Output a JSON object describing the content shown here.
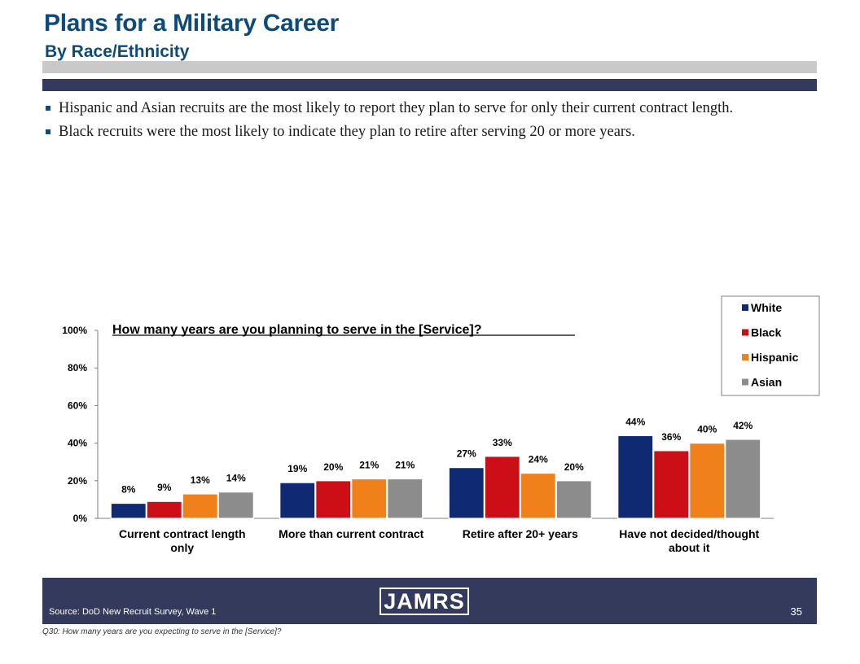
{
  "header": {
    "title": "Plans for a Military Career",
    "subtitle": "By Race/Ethnicity"
  },
  "bullets": [
    "Hispanic and Asian recruits are the most likely to report they plan to serve for only their current contract length.",
    "Black recruits were the most likely to indicate they plan to retire after serving 20 or more years."
  ],
  "colors": {
    "title": "#0e4a7a",
    "band_dark": "#333a5c",
    "band_light": "#c9c9c9"
  },
  "chart_data": {
    "type": "bar",
    "title": "How many years are you planning to serve in the [Service]?",
    "categories": [
      [
        "Current contract length",
        "only"
      ],
      [
        "More than current contract"
      ],
      [
        "Retire after 20+ years"
      ],
      [
        "Have not decided/thought",
        "about it"
      ]
    ],
    "series": [
      {
        "name": "White",
        "values": [
          8,
          19,
          27,
          44
        ],
        "labels": [
          "8%",
          "19%",
          "27%",
          "44%"
        ],
        "color": "#0f2a72"
      },
      {
        "name": "Black",
        "values": [
          9,
          20,
          33,
          36
        ],
        "labels": [
          "9%",
          "20%",
          "33%",
          "36%"
        ],
        "color": "#cc0f17"
      },
      {
        "name": "Hispanic",
        "values": [
          13,
          21,
          24,
          40
        ],
        "labels": [
          "13%",
          "21%",
          "24%",
          "40%"
        ],
        "color": "#f0801a"
      },
      {
        "name": "Asian",
        "values": [
          14,
          21,
          20,
          42
        ],
        "labels": [
          "14%",
          "21%",
          "20%",
          "42%"
        ],
        "color": "#8c8c8c"
      }
    ],
    "ylim": [
      0,
      100
    ],
    "yticks": [
      "0%",
      "20%",
      "40%",
      "60%",
      "80%",
      "100%"
    ],
    "legend": "top-right",
    "grid": false
  },
  "footer": {
    "logo": "JAMRS",
    "source": "Source:  DoD New Recruit Survey, Wave 1",
    "page": "35",
    "note": "Q30:  How many years are you expecting to serve in the [Service]?"
  }
}
